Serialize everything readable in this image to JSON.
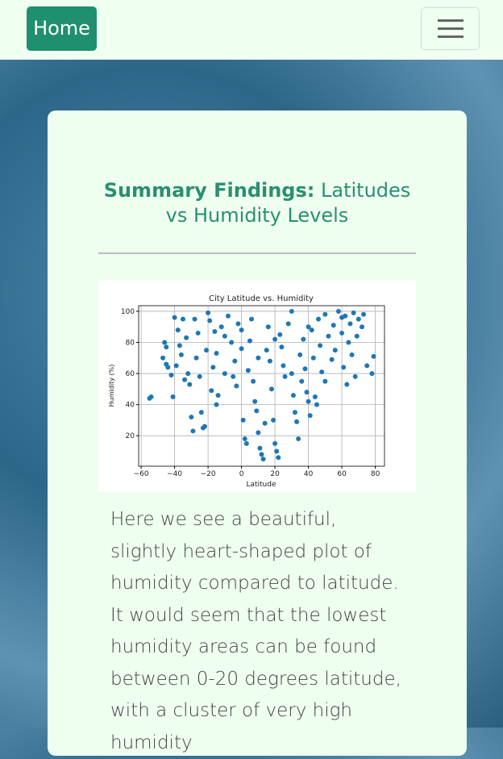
{
  "nav": {
    "brand": "Home"
  },
  "header": {
    "title_bold": "Summary Findings:",
    "title_rest": "Latitudes vs Humidity Levels"
  },
  "chart_data": {
    "type": "scatter",
    "title": "City Latitude vs. Humidity",
    "x_label": "Latitude",
    "y_label": "Humidity (%)",
    "color": "#1f77b4",
    "grid": true,
    "xlim": [
      -61.5,
      85.5
    ],
    "ylim": [
      0.4,
      103.6
    ],
    "xticks": [
      {
        "value": -60,
        "label": "−60"
      },
      {
        "value": -40,
        "label": "−40"
      },
      {
        "value": -20,
        "label": "−20"
      },
      0,
      20,
      40,
      60,
      80
    ],
    "yticks": [
      20,
      40,
      60,
      80,
      100
    ],
    "x": [
      -55,
      -54,
      -46,
      -45,
      -45,
      -44,
      -42,
      -41,
      -40,
      -39,
      -38,
      -37,
      -36,
      -35,
      -34,
      -33,
      -32,
      -31,
      -30,
      -29,
      -28,
      -27,
      -26,
      -25,
      -24,
      -23,
      -22,
      -21,
      -20,
      -19,
      -18,
      -17,
      -16,
      -15,
      -14,
      -12,
      -10,
      -8,
      -6,
      -5,
      -4,
      -3,
      -2,
      0,
      1,
      2,
      3,
      4,
      5,
      6,
      7,
      8,
      9,
      10,
      11,
      12,
      13,
      14,
      15,
      16,
      17,
      18,
      19,
      20,
      21,
      22,
      23,
      24,
      25,
      26,
      28,
      30,
      31,
      32,
      33,
      34,
      35,
      36,
      37,
      38,
      39,
      40,
      41,
      42,
      43,
      44,
      45,
      46,
      47,
      48,
      50,
      52,
      54,
      55,
      56,
      58,
      60,
      61,
      62,
      63,
      64,
      65,
      66,
      67,
      68,
      69,
      70,
      72,
      73,
      75,
      78,
      79,
      -47,
      -10,
      -15,
      0,
      10,
      20,
      30,
      40,
      50,
      60
    ],
    "y": [
      44,
      45,
      80,
      77,
      66,
      64,
      59,
      45,
      96,
      65,
      88,
      78,
      72,
      95,
      56,
      83,
      60,
      53,
      32,
      23,
      95,
      70,
      86,
      58,
      35,
      25,
      26,
      75,
      99,
      94,
      49,
      64,
      87,
      73,
      46,
      90,
      84,
      97,
      80,
      58,
      68,
      52,
      92,
      76,
      30,
      18,
      15,
      62,
      81,
      95,
      55,
      42,
      36,
      22,
      12,
      8,
      5,
      28,
      75,
      90,
      68,
      50,
      30,
      15,
      10,
      6,
      85,
      77,
      65,
      58,
      92,
      100,
      46,
      35,
      29,
      18,
      72,
      55,
      82,
      63,
      48,
      42,
      33,
      88,
      70,
      45,
      40,
      95,
      78,
      61,
      98,
      84,
      69,
      91,
      75,
      100,
      86,
      64,
      97,
      53,
      80,
      92,
      72,
      99,
      58,
      84,
      95,
      90,
      98,
      65,
      60,
      71,
      70,
      60,
      40,
      88,
      70,
      82,
      60,
      90,
      55,
      96
    ]
  },
  "body": {
    "paragraph": "Here we see a beautiful, slightly heart-shaped plot of humidity compared to latitude. It would seem that the lowest humidity areas can be found between 0-20 degrees latitude, with a cluster of very high humidity"
  }
}
